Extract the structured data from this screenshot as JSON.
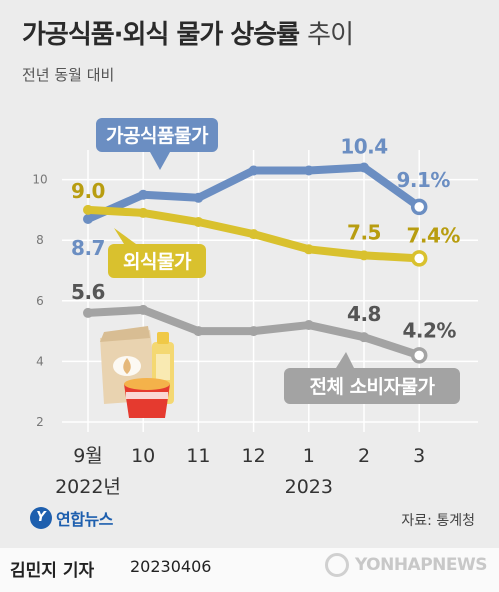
{
  "header": {
    "title_bold": "가공식품·외식 물가 상승률",
    "title_light": "추이",
    "subtitle": "전년 동월 대비"
  },
  "chart_data": {
    "type": "line",
    "categories": [
      "9월",
      "10",
      "11",
      "12",
      "1",
      "2",
      "3"
    ],
    "year_labels": [
      {
        "text": "2022년",
        "index": 0
      },
      {
        "text": "2023",
        "index": 4
      }
    ],
    "y_ticks": [
      2,
      4,
      6,
      8,
      10
    ],
    "ylim": [
      2,
      11
    ],
    "grid": true,
    "series": [
      {
        "name": "가공식품물가",
        "color": "#6b8ec2",
        "values": [
          8.7,
          9.5,
          9.4,
          10.3,
          10.3,
          10.4,
          9.1
        ],
        "labels": [
          {
            "index": 0,
            "text": "8.7"
          },
          {
            "index": 5,
            "text": "10.4"
          },
          {
            "index": 6,
            "text": "9.1%"
          }
        ]
      },
      {
        "name": "외식물가",
        "color": "#d9c12e",
        "label_color": "#b89d10",
        "values": [
          9.0,
          8.9,
          8.6,
          8.2,
          7.7,
          7.5,
          7.4
        ],
        "labels": [
          {
            "index": 0,
            "text": "9.0"
          },
          {
            "index": 5,
            "text": "7.5"
          },
          {
            "index": 6,
            "text": "7.4%"
          }
        ]
      },
      {
        "name": "전체 소비자물가",
        "color": "#a3a3a3",
        "label_color": "#555555",
        "values": [
          5.6,
          5.7,
          5.0,
          5.0,
          5.2,
          4.8,
          4.2
        ],
        "labels": [
          {
            "index": 0,
            "text": "5.6"
          },
          {
            "index": 5,
            "text": "4.8"
          },
          {
            "index": 6,
            "text": "4.2%"
          }
        ]
      }
    ]
  },
  "footer": {
    "logo_text": "연합뉴스",
    "logo_mark": "Y",
    "source": "자료: 통계청",
    "author": "김민지 기자",
    "date": "20230406",
    "watermark": "YONHAPNEWS"
  }
}
